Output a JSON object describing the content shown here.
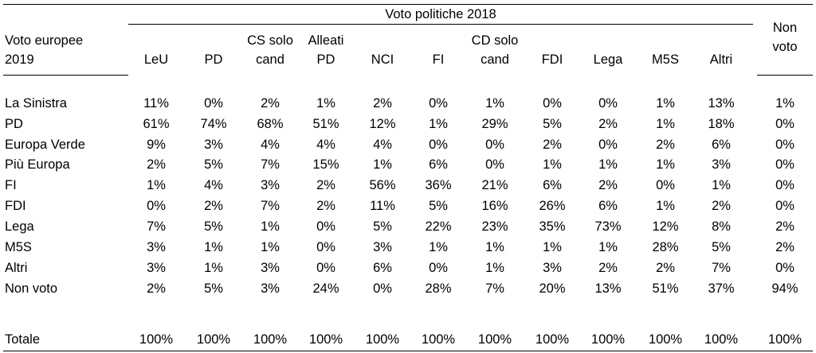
{
  "table": {
    "group_header": "Voto politiche 2018",
    "row_header_label": [
      "Voto europee",
      "2019"
    ],
    "columns": [
      [
        "LeU"
      ],
      [
        "PD"
      ],
      [
        "CS solo",
        "cand"
      ],
      [
        "Alleati",
        "PD"
      ],
      [
        "NCI"
      ],
      [
        "FI"
      ],
      [
        "CD solo",
        "cand"
      ],
      [
        "FDI"
      ],
      [
        "Lega"
      ],
      [
        "M5S"
      ],
      [
        "Altri"
      ],
      [
        "Non",
        "voto"
      ]
    ],
    "rows": [
      {
        "label": "La Sinistra",
        "values": [
          "11%",
          "0%",
          "2%",
          "1%",
          "2%",
          "0%",
          "1%",
          "0%",
          "0%",
          "1%",
          "13%",
          "1%"
        ]
      },
      {
        "label": "PD",
        "values": [
          "61%",
          "74%",
          "68%",
          "51%",
          "12%",
          "1%",
          "29%",
          "5%",
          "2%",
          "1%",
          "18%",
          "0%"
        ]
      },
      {
        "label": "Europa Verde",
        "values": [
          "9%",
          "3%",
          "4%",
          "4%",
          "4%",
          "0%",
          "0%",
          "2%",
          "0%",
          "2%",
          "6%",
          "0%"
        ]
      },
      {
        "label": "Più Europa",
        "values": [
          "2%",
          "5%",
          "7%",
          "15%",
          "1%",
          "6%",
          "0%",
          "1%",
          "1%",
          "1%",
          "3%",
          "0%"
        ]
      },
      {
        "label": "FI",
        "values": [
          "1%",
          "4%",
          "3%",
          "2%",
          "56%",
          "36%",
          "21%",
          "6%",
          "2%",
          "0%",
          "1%",
          "0%"
        ]
      },
      {
        "label": "FDI",
        "values": [
          "0%",
          "2%",
          "7%",
          "2%",
          "11%",
          "5%",
          "16%",
          "26%",
          "6%",
          "1%",
          "2%",
          "0%"
        ]
      },
      {
        "label": "Lega",
        "values": [
          "7%",
          "5%",
          "1%",
          "0%",
          "5%",
          "22%",
          "23%",
          "35%",
          "73%",
          "12%",
          "8%",
          "2%"
        ]
      },
      {
        "label": "M5S",
        "values": [
          "3%",
          "1%",
          "1%",
          "0%",
          "3%",
          "1%",
          "1%",
          "1%",
          "1%",
          "28%",
          "5%",
          "2%"
        ]
      },
      {
        "label": "Altri",
        "values": [
          "3%",
          "1%",
          "3%",
          "0%",
          "6%",
          "0%",
          "1%",
          "3%",
          "2%",
          "2%",
          "7%",
          "0%"
        ]
      },
      {
        "label": "Non voto",
        "values": [
          "2%",
          "5%",
          "3%",
          "24%",
          "0%",
          "28%",
          "7%",
          "20%",
          "13%",
          "51%",
          "37%",
          "94%"
        ]
      }
    ],
    "total_row": {
      "label": "Totale",
      "values": [
        "100%",
        "100%",
        "100%",
        "100%",
        "100%",
        "100%",
        "100%",
        "100%",
        "100%",
        "100%",
        "100%",
        "100%"
      ]
    }
  }
}
